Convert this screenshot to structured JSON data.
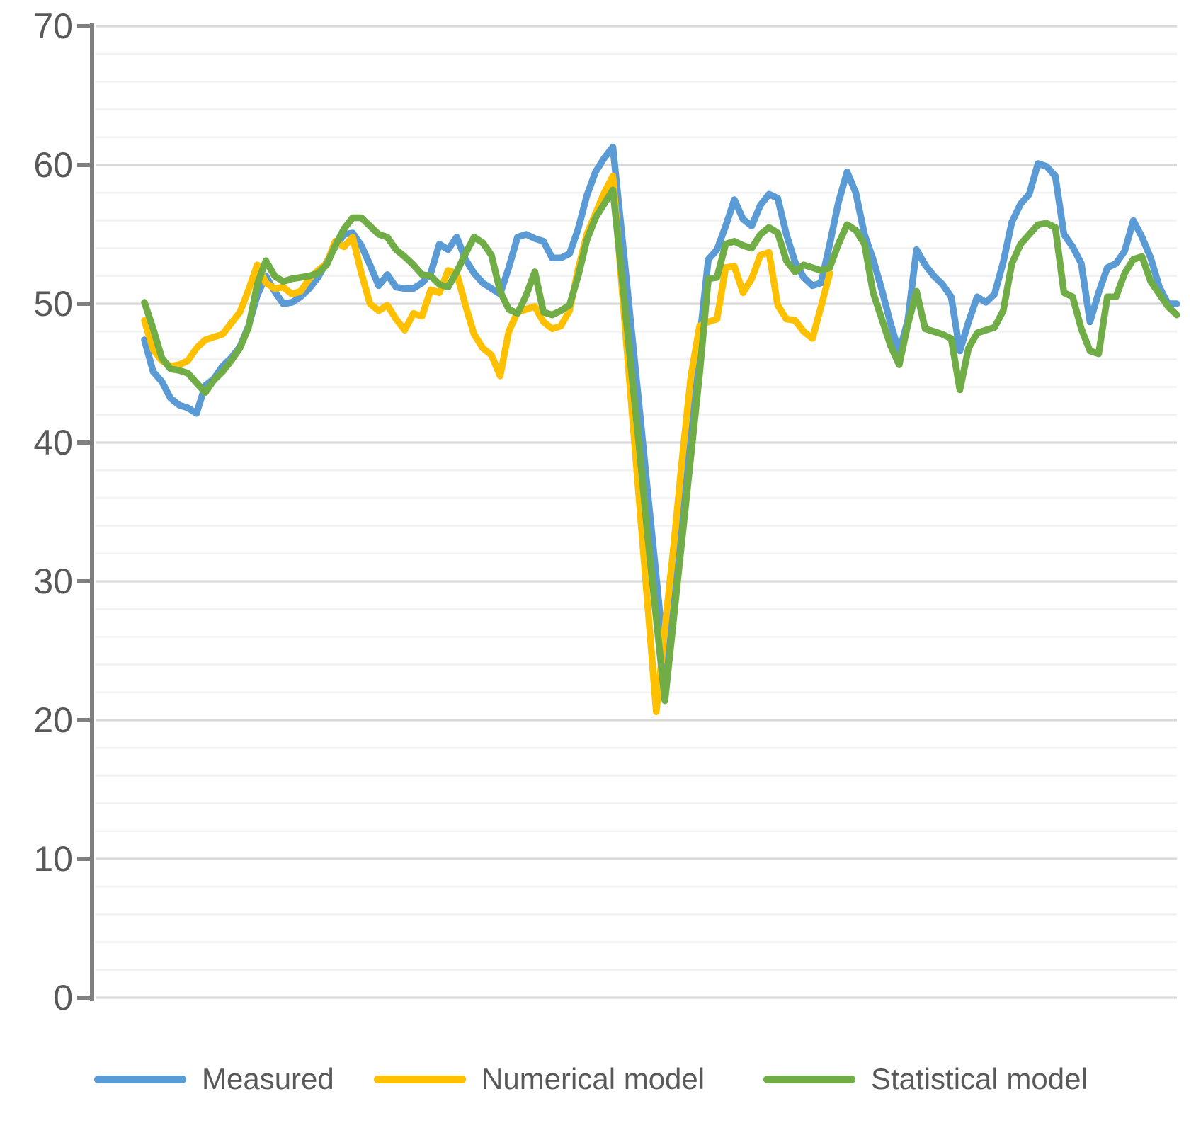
{
  "chart_data": {
    "type": "line",
    "title": "",
    "xlabel": "",
    "ylabel": "",
    "ylim": [
      0,
      70
    ],
    "y_major_step": 10,
    "y_minor_step": 2,
    "y_tick_labels": [
      "0",
      "10",
      "20",
      "30",
      "40",
      "50",
      "60",
      "70"
    ],
    "grid": "horizontal",
    "legend_position": "bottom",
    "series": [
      {
        "name": "Measured",
        "color": "#5B9BD5",
        "values": [
          47.4,
          45.1,
          44.4,
          43.2,
          42.7,
          42.5,
          42.1,
          44.1,
          44.6,
          45.5,
          46.1,
          46.9,
          48.4,
          50.6,
          52.0,
          50.9,
          50.0,
          50.1,
          50.5,
          51.1,
          51.9,
          53.0,
          54.1,
          55.0,
          55.1,
          54.2,
          52.8,
          51.3,
          52.1,
          51.2,
          51.1,
          51.1,
          51.5,
          52.2,
          54.3,
          53.9,
          54.8,
          53.2,
          52.2,
          51.5,
          51.1,
          50.7,
          52.6,
          54.8,
          55.0,
          54.7,
          54.5,
          53.3,
          53.3,
          53.6,
          55.4,
          57.8,
          59.5,
          60.5,
          61.3,
          55.2,
          49.0,
          42.8,
          36.5,
          30.3,
          24.0,
          29.8,
          35.7,
          41.5,
          47.4,
          53.2,
          53.9,
          55.6,
          57.5,
          56.1,
          55.6,
          57.1,
          57.9,
          57.6,
          55.0,
          53.0,
          51.9,
          51.3,
          51.5,
          54.3,
          57.3,
          59.5,
          58.0,
          55.0,
          53.2,
          51.0,
          48.6,
          46.5,
          48.8,
          53.9,
          52.8,
          52.0,
          51.4,
          50.5,
          46.6,
          48.7,
          50.5,
          50.1,
          50.7,
          53.0,
          55.9,
          57.2,
          57.9,
          60.1,
          59.9,
          59.2,
          55.0,
          54.1,
          52.9,
          48.7,
          50.8,
          52.6,
          52.9,
          53.8,
          56.0,
          54.8,
          53.3,
          51.2,
          50.0,
          50.0
        ]
      },
      {
        "name": "Numerical model",
        "color": "#FFC000",
        "values": [
          48.8,
          46.7,
          45.9,
          45.5,
          45.6,
          45.9,
          46.8,
          47.4,
          47.6,
          47.8,
          48.6,
          49.4,
          51.0,
          52.8,
          51.5,
          51.1,
          51.2,
          50.7,
          50.9,
          51.8,
          52.4,
          52.9,
          54.5,
          54.1,
          54.8,
          52.2,
          50.0,
          49.5,
          49.9,
          48.9,
          48.1,
          49.3,
          49.1,
          51.0,
          50.8,
          52.4,
          52.2,
          49.9,
          47.8,
          46.8,
          46.3,
          44.8,
          48.0,
          49.4,
          49.6,
          49.8,
          48.7,
          48.2,
          48.4,
          49.5,
          52.5,
          55.0,
          56.5,
          58.0,
          59.2,
          51.5,
          43.8,
          36.1,
          28.4,
          20.6,
          26.6,
          32.5,
          38.9,
          44.8,
          48.4,
          48.7,
          48.9,
          52.6,
          52.7,
          50.8,
          51.8,
          53.5,
          53.7,
          49.9,
          48.9,
          48.8,
          48.0,
          47.5,
          49.8,
          52.2
        ]
      },
      {
        "name": "Statistical model",
        "color": "#70AD47",
        "values": [
          50.1,
          48.2,
          46.1,
          45.3,
          45.2,
          45.0,
          44.3,
          43.6,
          44.5,
          45.1,
          45.9,
          46.8,
          48.3,
          51.4,
          53.1,
          52.0,
          51.6,
          51.8,
          51.9,
          52.0,
          52.2,
          52.8,
          54.2,
          55.4,
          56.2,
          56.2,
          55.6,
          55.0,
          54.8,
          53.9,
          53.4,
          52.8,
          52.1,
          52.0,
          51.4,
          51.2,
          52.3,
          53.6,
          54.8,
          54.4,
          53.5,
          50.9,
          49.6,
          49.3,
          50.6,
          52.3,
          49.4,
          49.2,
          49.5,
          49.9,
          52.0,
          54.6,
          56.2,
          57.2,
          58.2,
          52.2,
          46.0,
          39.9,
          33.3,
          27.3,
          21.4,
          27.3,
          33.2,
          39.1,
          45.0,
          51.8,
          51.9,
          54.3,
          54.5,
          54.2,
          54.0,
          55.0,
          55.5,
          55.1,
          53.1,
          52.3,
          52.8,
          52.6,
          52.4,
          52.6,
          54.3,
          55.7,
          55.3,
          54.3,
          50.8,
          48.9,
          47.0,
          45.6,
          48.5,
          50.9,
          48.2,
          48.0,
          47.8,
          47.5,
          43.8,
          46.8,
          47.9,
          48.1,
          48.3,
          49.5,
          52.9,
          54.3,
          55.0,
          55.7,
          55.8,
          55.5,
          50.8,
          50.5,
          48.2,
          46.6,
          46.4,
          50.5,
          50.5,
          52.2,
          53.2,
          53.4,
          51.6,
          50.7,
          49.8,
          49.2
        ]
      }
    ]
  },
  "style": {
    "axis_color": "#7F7F7F",
    "major_grid_color": "#D9D9D9",
    "minor_grid_color": "#F2F2F2",
    "tick_label_color": "#595959",
    "line_width": 9.5
  },
  "layout_note": "values only; geometry lives in template script"
}
